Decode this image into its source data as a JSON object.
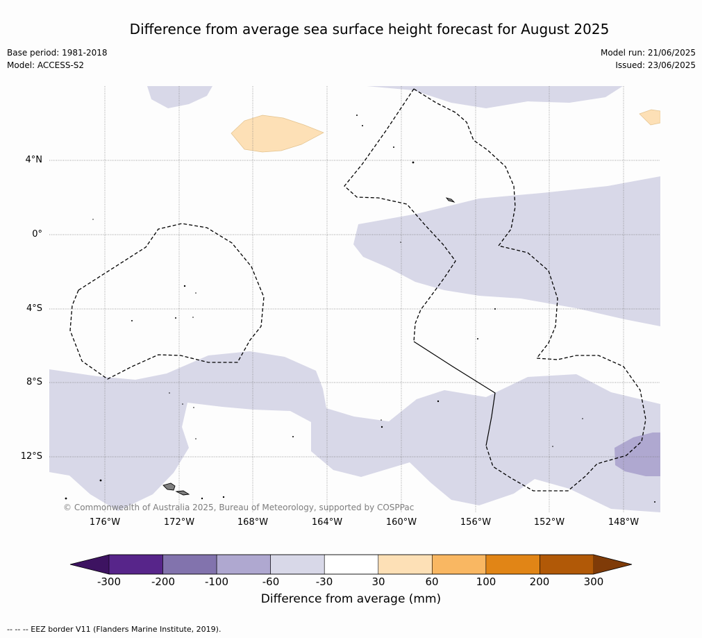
{
  "title": "Difference from average sea surface height forecast for August 2025",
  "meta_left": {
    "base_period": "Base period: 1981-2018",
    "model": "Model: ACCESS-S2"
  },
  "meta_right": {
    "model_run": "Model run: 21/06/2025",
    "issued": "Issued: 23/06/2025"
  },
  "map": {
    "lat_labels": [
      "4°N",
      "0°",
      "4°S",
      "8°S",
      "12°S"
    ],
    "lon_labels": [
      "176°W",
      "172°W",
      "168°W",
      "164°W",
      "160°W",
      "156°W",
      "152°W",
      "148°W"
    ],
    "copyright": "© Commonwealth of Australia 2025, Bureau of Meteorology, supported by COSPPac",
    "ocean_color": "#fdfdfd",
    "land_color": "#7f7f7f",
    "eez_border_style": "dashed black"
  },
  "colorbar": {
    "ticks": [
      "-300",
      "-200",
      "-100",
      "-60",
      "-30",
      "30",
      "60",
      "100",
      "200",
      "300"
    ],
    "colors": [
      "#3d1361",
      "#57258a",
      "#8273ad",
      "#afa8d0",
      "#d8d8e8",
      "#ffffff",
      "#fde0b6",
      "#f9b762",
      "#e18516",
      "#b15907",
      "#7f3b08"
    ],
    "label": "Difference from average (mm)"
  },
  "footnote": "--  --  -- EEZ border V11 (Flanders Marine Institute, 2019)."
}
